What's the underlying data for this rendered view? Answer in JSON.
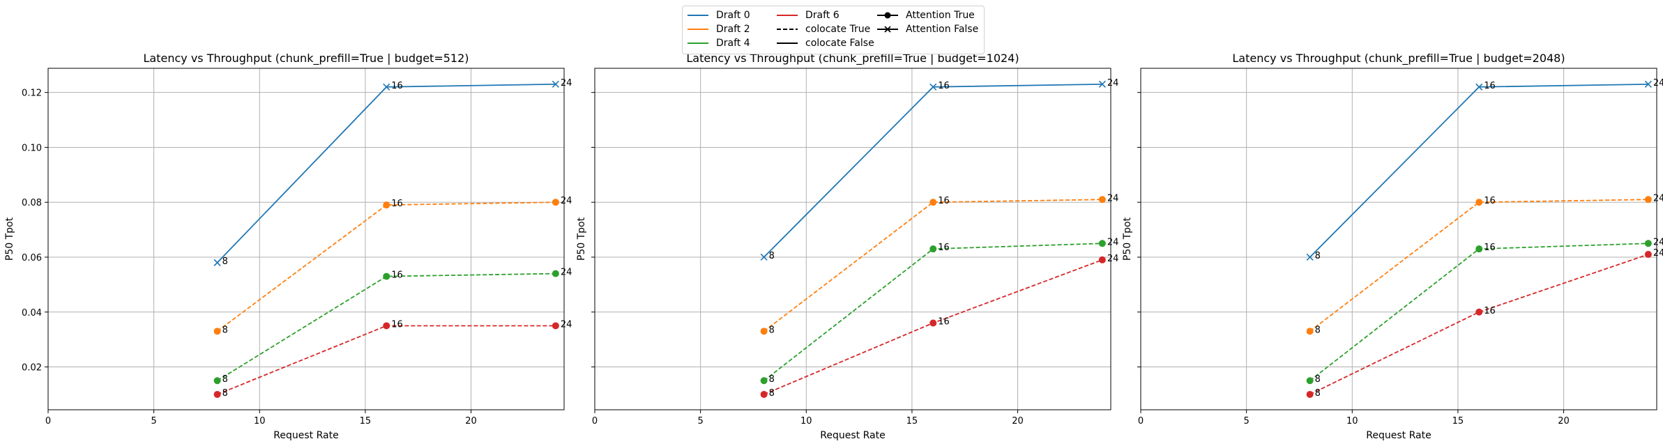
{
  "legend": {
    "entries": [
      {
        "label": "Draft 0",
        "color": "#1f77b4",
        "line": "solid",
        "marker": "none"
      },
      {
        "label": "Draft 2",
        "color": "#ff7f0e",
        "line": "solid",
        "marker": "none"
      },
      {
        "label": "Draft 4",
        "color": "#2ca02c",
        "line": "solid",
        "marker": "none"
      },
      {
        "label": "Draft 6",
        "color": "#d62728",
        "line": "solid",
        "marker": "none"
      },
      {
        "label": "colocate True",
        "color": "#000000",
        "line": "dashed",
        "marker": "none"
      },
      {
        "label": "colocate False",
        "color": "#000000",
        "line": "solid",
        "marker": "none"
      },
      {
        "label": "Attention True",
        "color": "#000000",
        "line": "solid",
        "marker": "circle"
      },
      {
        "label": "Attention False",
        "color": "#000000",
        "line": "solid",
        "marker": "x"
      }
    ]
  },
  "chart_data": [
    {
      "type": "line",
      "title": "Latency vs Throughput (chunk_prefill=True | budget=512)",
      "xlabel": "Request Rate",
      "ylabel": "P50 Tpot",
      "xlim": [
        0,
        24.4
      ],
      "ylim": [
        0.0044,
        0.1288
      ],
      "xticks": [
        0,
        5,
        10,
        15,
        20
      ],
      "yticks": [
        0.02,
        0.04,
        0.06,
        0.08,
        0.1,
        0.12
      ],
      "grid": true,
      "legend_position": "top-center",
      "series": [
        {
          "color": "#1f77b4",
          "dashed": false,
          "marker": "x",
          "x": [
            8,
            16,
            24
          ],
          "y": [
            0.058,
            0.122,
            0.123
          ],
          "labels": [
            "8",
            "16",
            "24"
          ]
        },
        {
          "color": "#ff7f0e",
          "dashed": true,
          "marker": "circle",
          "x": [
            8,
            16,
            24
          ],
          "y": [
            0.033,
            0.079,
            0.08
          ],
          "labels": [
            "8",
            "16",
            "24"
          ]
        },
        {
          "color": "#2ca02c",
          "dashed": true,
          "marker": "circle",
          "x": [
            8,
            16,
            24
          ],
          "y": [
            0.015,
            0.053,
            0.054
          ],
          "labels": [
            "8",
            "16",
            "24"
          ]
        },
        {
          "color": "#d62728",
          "dashed": true,
          "marker": "circle",
          "x": [
            8,
            16,
            24
          ],
          "y": [
            0.01,
            0.035,
            0.035
          ],
          "labels": [
            "8",
            "16",
            "24"
          ]
        }
      ]
    },
    {
      "type": "line",
      "title": "Latency vs Throughput (chunk_prefill=True | budget=1024)",
      "xlabel": "Request Rate",
      "ylabel": "P50 Tpot",
      "xlim": [
        0,
        24.4
      ],
      "ylim": [
        0.0044,
        0.1288
      ],
      "xticks": [
        0,
        5,
        10,
        15,
        20
      ],
      "yticks": [
        0.02,
        0.04,
        0.06,
        0.08,
        0.1,
        0.12
      ],
      "grid": true,
      "legend_position": "top-center",
      "series": [
        {
          "color": "#1f77b4",
          "dashed": false,
          "marker": "x",
          "x": [
            8,
            16,
            24
          ],
          "y": [
            0.06,
            0.122,
            0.123
          ],
          "labels": [
            "8",
            "16",
            "24"
          ]
        },
        {
          "color": "#ff7f0e",
          "dashed": true,
          "marker": "circle",
          "x": [
            8,
            16,
            24
          ],
          "y": [
            0.033,
            0.08,
            0.081
          ],
          "labels": [
            "8",
            "16",
            "24"
          ]
        },
        {
          "color": "#2ca02c",
          "dashed": true,
          "marker": "circle",
          "x": [
            8,
            16,
            24
          ],
          "y": [
            0.015,
            0.063,
            0.065
          ],
          "labels": [
            "8",
            "16",
            "24"
          ]
        },
        {
          "color": "#d62728",
          "dashed": true,
          "marker": "circle",
          "x": [
            8,
            16,
            24
          ],
          "y": [
            0.01,
            0.036,
            0.059
          ],
          "labels": [
            "8",
            "16",
            "24"
          ]
        }
      ]
    },
    {
      "type": "line",
      "title": "Latency vs Throughput (chunk_prefill=True | budget=2048)",
      "xlabel": "Request Rate",
      "ylabel": "P50 Tpot",
      "xlim": [
        0,
        24.4
      ],
      "ylim": [
        0.0044,
        0.1288
      ],
      "xticks": [
        0,
        5,
        10,
        15,
        20
      ],
      "yticks": [
        0.02,
        0.04,
        0.06,
        0.08,
        0.1,
        0.12
      ],
      "grid": true,
      "legend_position": "top-center",
      "series": [
        {
          "color": "#1f77b4",
          "dashed": false,
          "marker": "x",
          "x": [
            8,
            16,
            24
          ],
          "y": [
            0.06,
            0.122,
            0.123
          ],
          "labels": [
            "8",
            "16",
            "24"
          ]
        },
        {
          "color": "#ff7f0e",
          "dashed": true,
          "marker": "circle",
          "x": [
            8,
            16,
            24
          ],
          "y": [
            0.033,
            0.08,
            0.081
          ],
          "labels": [
            "8",
            "16",
            "24"
          ]
        },
        {
          "color": "#2ca02c",
          "dashed": true,
          "marker": "circle",
          "x": [
            8,
            16,
            24
          ],
          "y": [
            0.015,
            0.063,
            0.065
          ],
          "labels": [
            "8",
            "16",
            "24"
          ]
        },
        {
          "color": "#d62728",
          "dashed": true,
          "marker": "circle",
          "x": [
            8,
            16,
            24
          ],
          "y": [
            0.01,
            0.04,
            0.061
          ],
          "labels": [
            "8",
            "16",
            "24"
          ]
        }
      ]
    }
  ]
}
